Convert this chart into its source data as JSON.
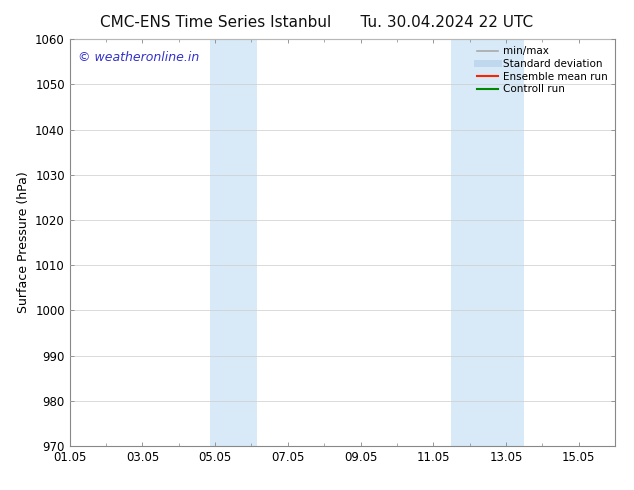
{
  "title_left": "CMC-ENS Time Series Istanbul",
  "title_right": "Tu. 30.04.2024 22 UTC",
  "ylabel": "Surface Pressure (hPa)",
  "ylim": [
    970,
    1060
  ],
  "yticks": [
    970,
    980,
    990,
    1000,
    1010,
    1020,
    1030,
    1040,
    1050,
    1060
  ],
  "xtick_labels": [
    "01.05",
    "03.05",
    "05.05",
    "07.05",
    "09.05",
    "11.05",
    "13.05",
    "15.05"
  ],
  "xtick_positions": [
    0,
    2,
    4,
    6,
    8,
    10,
    12,
    14
  ],
  "xlim": [
    0,
    15
  ],
  "shaded_bands": [
    {
      "x_start": 3.85,
      "x_end": 5.15,
      "color": "#d8eaf8"
    },
    {
      "x_start": 10.5,
      "x_end": 12.5,
      "color": "#d8eaf8"
    }
  ],
  "watermark_text": "© weatheronline.in",
  "watermark_color": "#3333cc",
  "legend_items": [
    {
      "label": "min/max",
      "color": "#aaaaaa",
      "lw": 1.2,
      "style": "solid"
    },
    {
      "label": "Standard deviation",
      "color": "#c0d8ee",
      "lw": 5,
      "style": "solid"
    },
    {
      "label": "Ensemble mean run",
      "color": "#ff2200",
      "lw": 1.5,
      "style": "solid"
    },
    {
      "label": "Controll run",
      "color": "#008800",
      "lw": 1.5,
      "style": "solid"
    }
  ],
  "bg_color": "#ffffff",
  "plot_bg_color": "#ffffff",
  "grid_color": "#cccccc",
  "title_fontsize": 11,
  "tick_fontsize": 8.5,
  "label_fontsize": 9,
  "watermark_fontsize": 9
}
